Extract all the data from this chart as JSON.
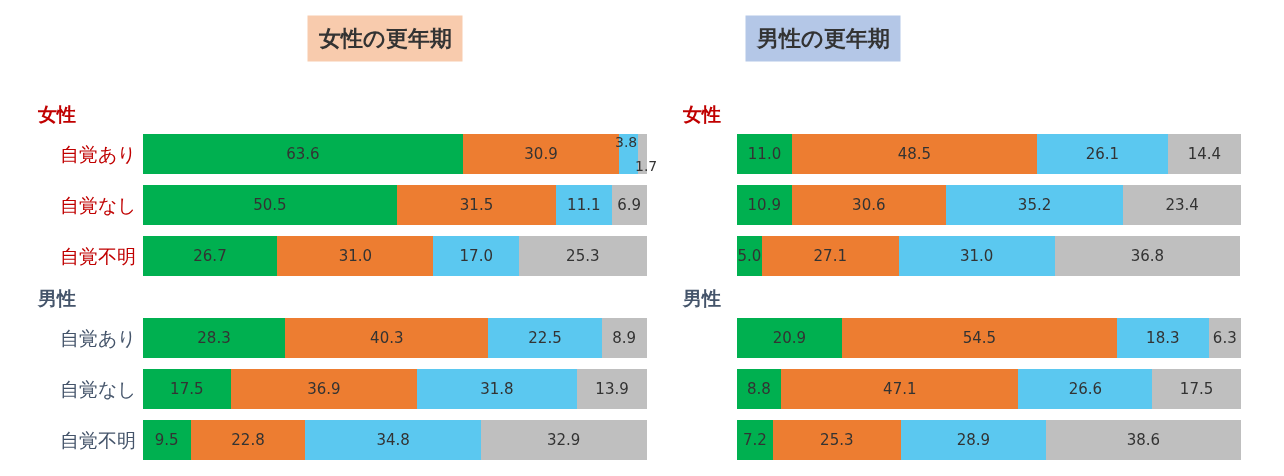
{
  "chart_data": [
    {
      "type": "bar",
      "orientation": "horizontal",
      "stacked": true,
      "title": "女性の更年期",
      "tick_labels": "y",
      "categories": [
        "自覚あり",
        "自覚なし",
        "自覚不明",
        "自覚あり",
        "自覚なし",
        "自覚不明"
      ],
      "annotations": [
        "女性",
        "男性"
      ],
      "series": [
        {
          "color": "#00b050",
          "values": [
            63.6,
            50.5,
            26.7,
            28.3,
            17.5,
            9.5
          ],
          "value_labels": [
            "63.6",
            "50.5",
            "26.7",
            "28.3",
            "17.5",
            "9.5"
          ]
        },
        {
          "color": "#ed7d31",
          "values": [
            30.9,
            31.5,
            31.0,
            40.3,
            36.9,
            22.8
          ],
          "value_labels": [
            "30.9",
            "31.5",
            "31.0",
            "40.3",
            "36.9",
            "22.8"
          ]
        },
        {
          "color": "#5bc8f0",
          "values": [
            3.8,
            11.1,
            17.0,
            22.5,
            31.8,
            34.8
          ],
          "value_labels": [
            "3.8",
            "11.1",
            "17.0",
            "22.5",
            "31.8",
            "34.8"
          ]
        },
        {
          "color": "#bfbfbf",
          "values": [
            1.7,
            6.9,
            25.3,
            8.9,
            13.9,
            32.9
          ],
          "value_labels": [
            "1.7",
            "6.9",
            "25.3",
            "8.9",
            "13.9",
            "32.9"
          ]
        }
      ]
    },
    {
      "type": "bar",
      "orientation": "horizontal",
      "stacked": true,
      "title": "男性の更年期",
      "tick_labels": false,
      "categories": [
        null,
        null,
        null,
        null,
        null,
        null
      ],
      "annotations": [
        "女性",
        "男性"
      ],
      "series": [
        {
          "color": "#00b050",
          "values": [
            11.0,
            10.9,
            5.0,
            20.9,
            8.8,
            7.2
          ],
          "value_labels": [
            "11.0",
            "10.9",
            "5.0",
            "20.9",
            "8.8",
            "7.2"
          ]
        },
        {
          "color": "#ed7d31",
          "values": [
            48.5,
            30.6,
            27.1,
            54.5,
            47.1,
            25.3
          ],
          "value_labels": [
            "48.5",
            "30.6",
            "27.1",
            "54.5",
            "47.1",
            "25.3"
          ]
        },
        {
          "color": "#5bc8f0",
          "values": [
            26.1,
            35.2,
            31.0,
            18.3,
            26.6,
            28.9
          ],
          "value_labels": [
            "26.1",
            "35.2",
            "31.0",
            "18.3",
            "26.6",
            "28.9"
          ]
        },
        {
          "color": "#bfbfbf",
          "values": [
            14.4,
            23.4,
            36.8,
            6.3,
            17.5,
            38.6
          ],
          "value_labels": [
            "14.4",
            "23.4",
            "36.8",
            "6.3",
            "17.5",
            "38.6"
          ]
        }
      ]
    }
  ]
}
